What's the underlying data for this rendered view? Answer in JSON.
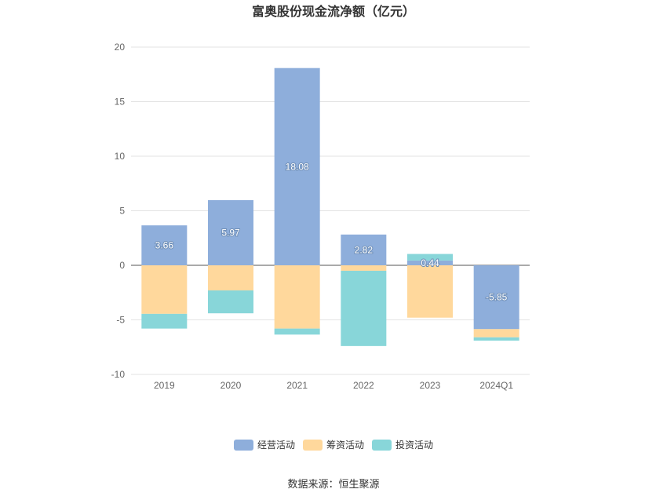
{
  "chart_data": {
    "type": "bar",
    "stacked": true,
    "title": "富奥股份现金流净额（亿元）",
    "categories": [
      "2019",
      "2020",
      "2021",
      "2022",
      "2023",
      "2024Q1"
    ],
    "series": [
      {
        "name": "经营活动",
        "color": "#8eaedb",
        "values": [
          3.66,
          5.97,
          18.08,
          2.82,
          0.44,
          -5.85
        ],
        "show_labels": true
      },
      {
        "name": "筹资活动",
        "color": "#ffd89c",
        "values": [
          -4.45,
          -2.3,
          -5.8,
          -0.5,
          -4.8,
          -0.75
        ],
        "show_labels": false
      },
      {
        "name": "投资活动",
        "color": "#88d6d9",
        "values": [
          -1.35,
          -2.1,
          -0.55,
          -6.9,
          0.6,
          -0.3
        ],
        "show_labels": false
      }
    ],
    "ylim": [
      -10,
      20
    ],
    "yticks": [
      -10,
      -5,
      0,
      5,
      10,
      15,
      20
    ],
    "grid": true,
    "legend_position": "bottom-center",
    "source": "数据来源：恒生聚源"
  }
}
